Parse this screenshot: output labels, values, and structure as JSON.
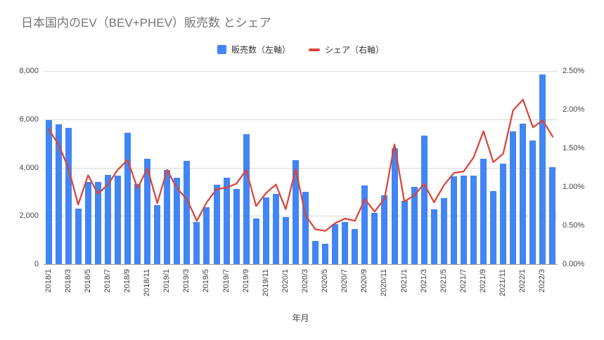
{
  "title": "日本国内のEV（BEV+PHEV）販売数 とシェア",
  "legend": [
    {
      "label": "販売数（左軸）",
      "color": "#4285F4",
      "type": "square"
    },
    {
      "label": "シェア（右軸）",
      "color": "#DB4437",
      "type": "line"
    }
  ],
  "colors": {
    "bar": "#4285F4",
    "line": "#DB4437",
    "grid": "#d9d9d9",
    "axis_text": "#444444",
    "title_text": "#757575"
  },
  "chart_data": {
    "type": "bar",
    "subtype": "bar+line combo, dual axis",
    "title": "日本国内のEV（BEV+PHEV）販売数 とシェア",
    "xlabel": "年月",
    "x": [
      "2018/1",
      "2018/2",
      "2018/3",
      "2018/4",
      "2018/5",
      "2018/6",
      "2018/7",
      "2018/8",
      "2018/9",
      "2018/10",
      "2018/11",
      "2018/12",
      "2019/1",
      "2019/2",
      "2019/3",
      "2019/4",
      "2019/5",
      "2019/6",
      "2019/7",
      "2019/8",
      "2019/9",
      "2019/10",
      "2019/11",
      "2019/12",
      "2020/1",
      "2020/2",
      "2020/3",
      "2020/4",
      "2020/5",
      "2020/6",
      "2020/7",
      "2020/8",
      "2020/9",
      "2020/10",
      "2020/11",
      "2020/12",
      "2021/1",
      "2021/2",
      "2021/3",
      "2021/4",
      "2021/5",
      "2021/6",
      "2021/7",
      "2021/8",
      "2021/9",
      "2021/10",
      "2021/11",
      "2021/12",
      "2022/1",
      "2022/2",
      "2022/3",
      "2022/4"
    ],
    "x_tick_every": 2,
    "x_tick_labels_shown": [
      "2018/1",
      "2018/3",
      "2018/5",
      "2018/7",
      "2018/9",
      "2018/11",
      "2019/1",
      "2019/3",
      "2019/5",
      "2019/7",
      "2019/9",
      "2019/11",
      "2020/1",
      "2020/3",
      "2020/5",
      "2020/7",
      "2020/9",
      "2020/11",
      "2021/1",
      "2021/3",
      "2021/5",
      "2021/7",
      "2021/9",
      "2021/11",
      "2022/1",
      "2022/3"
    ],
    "series": [
      {
        "name": "販売数（左軸）",
        "type": "bar",
        "axis": "left",
        "color": "#4285F4",
        "values": [
          5960,
          5790,
          5630,
          2310,
          3410,
          3400,
          3700,
          3670,
          5430,
          3330,
          4360,
          2450,
          3900,
          3570,
          4280,
          1750,
          2350,
          3280,
          3570,
          3100,
          5370,
          1890,
          2750,
          2910,
          1950,
          4300,
          3000,
          950,
          850,
          1660,
          1750,
          1460,
          3250,
          2110,
          2840,
          4800,
          2620,
          3200,
          5330,
          2260,
          2730,
          3640,
          3660,
          3660,
          4360,
          3030,
          4170,
          5490,
          5810,
          5110,
          7860,
          4020
        ]
      },
      {
        "name": "シェア（右軸）",
        "type": "line",
        "axis": "right",
        "color": "#DB4437",
        "unit": "%",
        "values": [
          1.75,
          1.55,
          1.25,
          0.77,
          1.15,
          0.91,
          1.03,
          1.22,
          1.35,
          0.98,
          1.24,
          0.79,
          1.22,
          0.98,
          0.84,
          0.56,
          0.8,
          0.97,
          0.99,
          1.04,
          1.22,
          0.75,
          0.92,
          1.03,
          0.71,
          1.23,
          0.63,
          0.45,
          0.43,
          0.53,
          0.59,
          0.56,
          0.84,
          0.68,
          0.85,
          1.55,
          0.81,
          0.89,
          1.04,
          0.8,
          1.02,
          1.18,
          1.2,
          1.38,
          1.72,
          1.32,
          1.43,
          1.99,
          2.13,
          1.77,
          1.86,
          1.65
        ]
      }
    ],
    "left_axis": {
      "min": 0,
      "max": 8000,
      "tick_values": [
        0,
        2000,
        4000,
        6000,
        8000
      ],
      "tick_labels": [
        "0",
        "2,000",
        "4,000",
        "6,000",
        "8,000"
      ]
    },
    "right_axis": {
      "min": 0,
      "max": 2.5,
      "tick_values": [
        0,
        0.5,
        1.0,
        1.5,
        2.0,
        2.5
      ],
      "tick_labels": [
        "0.00%",
        "0.50%",
        "1.00%",
        "1.50%",
        "2.00%",
        "2.50%"
      ]
    },
    "grid": true,
    "gridlines_at": "left_axis_ticks",
    "legend_position": "top-center"
  }
}
